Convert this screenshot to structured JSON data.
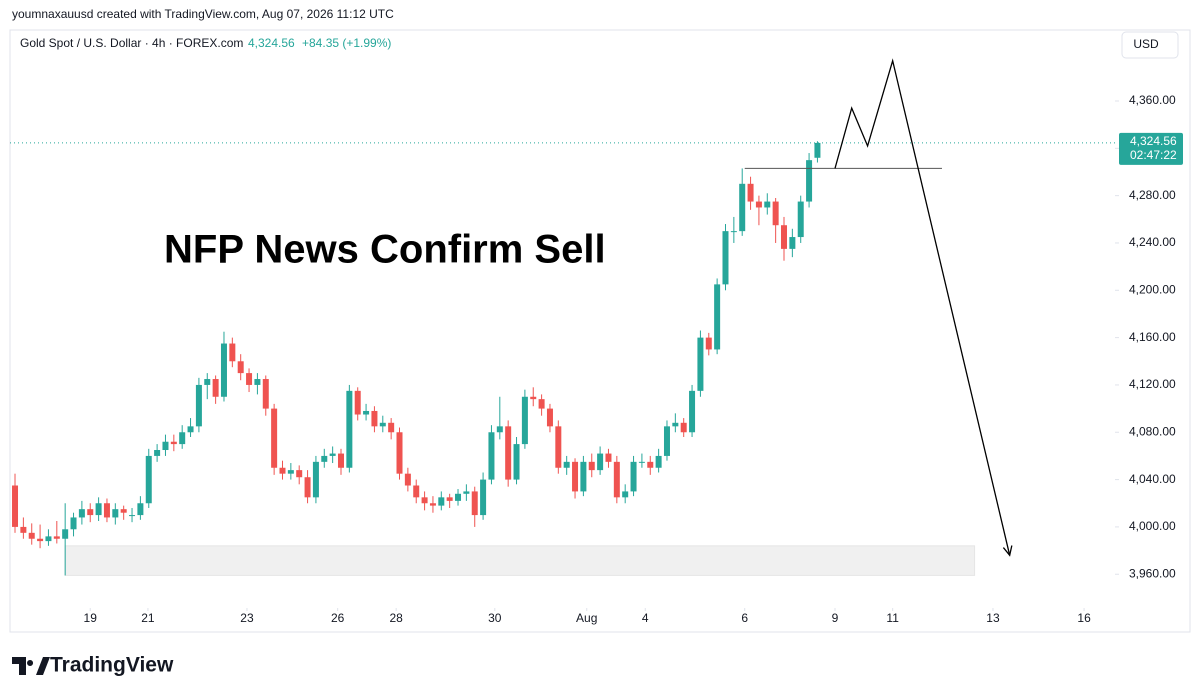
{
  "chart_data": {
    "type": "candlestick",
    "credit": "youmnaxauusd created with TradingView.com, Aug 07, 2026 11:12 UTC",
    "symbol": "Gold Spot / U.S. Dollar · 4h · FOREX.com",
    "last_price": "4,324.56",
    "change": "+84.35 (+1.99%)",
    "currency": "USD",
    "price_tag": "4,324.56",
    "countdown": "02:47:22",
    "annotation": "NFP News Confirm Sell",
    "brand": "TradingView",
    "up_color": "#26a69a",
    "down_color": "#ef5350",
    "ylim": [
      3934,
      4420
    ],
    "yticks": [
      {
        "value": 3960,
        "label": "3,960.00"
      },
      {
        "value": 4000,
        "label": "4,000.00"
      },
      {
        "value": 4040,
        "label": "4,040.00"
      },
      {
        "value": 4080,
        "label": "4,080.00"
      },
      {
        "value": 4120,
        "label": "4,120.00"
      },
      {
        "value": 4160,
        "label": "4,160.00"
      },
      {
        "value": 4200,
        "label": "4,200.00"
      },
      {
        "value": 4240,
        "label": "4,240.00"
      },
      {
        "value": 4280,
        "label": "4,280.00"
      },
      {
        "value": 4320,
        "label": "4,320.00"
      },
      {
        "value": 4360,
        "label": "4,360.00"
      }
    ],
    "xlim": [
      -0.6,
      131.6
    ],
    "xticks": [
      {
        "value": 9,
        "label": "19"
      },
      {
        "value": 15.9,
        "label": "21"
      },
      {
        "value": 27.75,
        "label": "23"
      },
      {
        "value": 38.6,
        "label": "26"
      },
      {
        "value": 45.6,
        "label": "28"
      },
      {
        "value": 57.4,
        "label": "30"
      },
      {
        "value": 68.4,
        "label": "Aug"
      },
      {
        "value": 75.4,
        "label": "4"
      },
      {
        "value": 87.3,
        "label": "6"
      },
      {
        "value": 98.1,
        "label": "9"
      },
      {
        "value": 105,
        "label": "11"
      },
      {
        "value": 117,
        "label": "13"
      },
      {
        "value": 127.9,
        "label": "16"
      }
    ],
    "current": 4324.56,
    "zone": {
      "x": [
        6,
        114.8
      ],
      "y": [
        3959,
        3984
      ]
    },
    "level": {
      "x": [
        87.3,
        110.9
      ],
      "y": 4303
    },
    "projection": [
      [
        98.1,
        4303
      ],
      [
        100.1,
        4354
      ],
      [
        102,
        4322
      ],
      [
        105,
        4394
      ],
      [
        119,
        3976
      ]
    ],
    "candles": [
      [
        4035,
        4045,
        3995,
        4000
      ],
      [
        4000,
        4008,
        3990,
        3995
      ],
      [
        3995,
        4003,
        3985,
        3990
      ],
      [
        3990,
        4002,
        3982,
        3988
      ],
      [
        3988,
        3998,
        3984,
        3992
      ],
      [
        3992,
        4005,
        3986,
        3990
      ],
      [
        3990,
        4020,
        3959,
        3998
      ],
      [
        3998,
        4012,
        3992,
        4008
      ],
      [
        4008,
        4022,
        4002,
        4015
      ],
      [
        4015,
        4020,
        4004,
        4010
      ],
      [
        4010,
        4025,
        4005,
        4020
      ],
      [
        4020,
        4024,
        4004,
        4008
      ],
      [
        4008,
        4020,
        4002,
        4015
      ],
      [
        4015,
        4018,
        4006,
        4012
      ],
      [
        4010,
        4016,
        4004,
        4010
      ],
      [
        4010,
        4026,
        4006,
        4020
      ],
      [
        4020,
        4066,
        4016,
        4060
      ],
      [
        4060,
        4070,
        4055,
        4065
      ],
      [
        4065,
        4078,
        4060,
        4072
      ],
      [
        4072,
        4078,
        4064,
        4070
      ],
      [
        4070,
        4086,
        4066,
        4080
      ],
      [
        4080,
        4092,
        4076,
        4085
      ],
      [
        4085,
        4126,
        4080,
        4120
      ],
      [
        4120,
        4130,
        4108,
        4125
      ],
      [
        4125,
        4128,
        4104,
        4110
      ],
      [
        4110,
        4165,
        4106,
        4155
      ],
      [
        4155,
        4160,
        4135,
        4140
      ],
      [
        4140,
        4146,
        4124,
        4130
      ],
      [
        4130,
        4134,
        4114,
        4120
      ],
      [
        4120,
        4130,
        4112,
        4125
      ],
      [
        4125,
        4128,
        4094,
        4100
      ],
      [
        4100,
        4104,
        4044,
        4050
      ],
      [
        4050,
        4056,
        4040,
        4045
      ],
      [
        4045,
        4054,
        4040,
        4048
      ],
      [
        4048,
        4052,
        4036,
        4042
      ],
      [
        4042,
        4048,
        4020,
        4025
      ],
      [
        4025,
        4060,
        4020,
        4055
      ],
      [
        4055,
        4066,
        4050,
        4060
      ],
      [
        4060,
        4068,
        4054,
        4062
      ],
      [
        4062,
        4066,
        4044,
        4050
      ],
      [
        4050,
        4120,
        4046,
        4115
      ],
      [
        4115,
        4118,
        4090,
        4095
      ],
      [
        4095,
        4104,
        4090,
        4098
      ],
      [
        4098,
        4102,
        4080,
        4085
      ],
      [
        4085,
        4094,
        4080,
        4088
      ],
      [
        4088,
        4092,
        4074,
        4080
      ],
      [
        4080,
        4084,
        4040,
        4045
      ],
      [
        4045,
        4050,
        4030,
        4035
      ],
      [
        4035,
        4040,
        4020,
        4025
      ],
      [
        4025,
        4030,
        4014,
        4020
      ],
      [
        4020,
        4026,
        4012,
        4018
      ],
      [
        4018,
        4030,
        4014,
        4025
      ],
      [
        4025,
        4028,
        4016,
        4022
      ],
      [
        4022,
        4032,
        4018,
        4028
      ],
      [
        4028,
        4036,
        4022,
        4030
      ],
      [
        4030,
        4034,
        4000,
        4010
      ],
      [
        4010,
        4046,
        4006,
        4040
      ],
      [
        4040,
        4086,
        4036,
        4080
      ],
      [
        4080,
        4110,
        4074,
        4085
      ],
      [
        4085,
        4090,
        4034,
        4040
      ],
      [
        4040,
        4076,
        4036,
        4070
      ],
      [
        4070,
        4116,
        4066,
        4110
      ],
      [
        4110,
        4118,
        4102,
        4108
      ],
      [
        4108,
        4112,
        4094,
        4100
      ],
      [
        4100,
        4104,
        4080,
        4085
      ],
      [
        4085,
        4090,
        4045,
        4050
      ],
      [
        4050,
        4060,
        4044,
        4055
      ],
      [
        4055,
        4058,
        4024,
        4030
      ],
      [
        4030,
        4060,
        4026,
        4055
      ],
      [
        4055,
        4062,
        4042,
        4048
      ],
      [
        4048,
        4068,
        4044,
        4062
      ],
      [
        4062,
        4066,
        4050,
        4055
      ],
      [
        4055,
        4060,
        4020,
        4025
      ],
      [
        4025,
        4036,
        4020,
        4030
      ],
      [
        4030,
        4060,
        4026,
        4055
      ],
      [
        4055,
        4062,
        4050,
        4055
      ],
      [
        4055,
        4060,
        4044,
        4050
      ],
      [
        4050,
        4066,
        4046,
        4060
      ],
      [
        4060,
        4090,
        4056,
        4085
      ],
      [
        4085,
        4096,
        4080,
        4088
      ],
      [
        4088,
        4092,
        4076,
        4080
      ],
      [
        4080,
        4120,
        4076,
        4115
      ],
      [
        4115,
        4166,
        4110,
        4160
      ],
      [
        4160,
        4164,
        4145,
        4150
      ],
      [
        4150,
        4210,
        4146,
        4205
      ],
      [
        4205,
        4256,
        4200,
        4250
      ],
      [
        4250,
        4262,
        4240,
        4250
      ],
      [
        4250,
        4303,
        4246,
        4290
      ],
      [
        4290,
        4296,
        4268,
        4275
      ],
      [
        4275,
        4280,
        4255,
        4270
      ],
      [
        4270,
        4282,
        4264,
        4275
      ],
      [
        4275,
        4278,
        4240,
        4255
      ],
      [
        4255,
        4262,
        4225,
        4235
      ],
      [
        4235,
        4252,
        4228,
        4245
      ],
      [
        4245,
        4280,
        4240,
        4275
      ],
      [
        4275,
        4316,
        4270,
        4310
      ],
      [
        4312,
        4326,
        4308,
        4324.56
      ]
    ]
  }
}
